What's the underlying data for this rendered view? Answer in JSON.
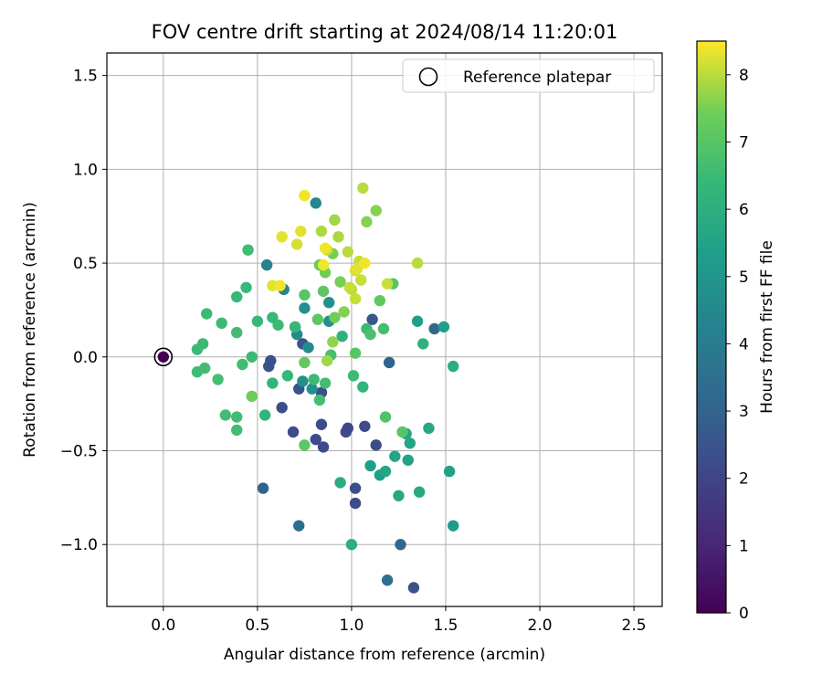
{
  "chart_data": {
    "type": "scatter",
    "title": "FOV centre drift starting at 2024/08/14 11:20:01",
    "xlabel": "Angular distance from reference (arcmin)",
    "ylabel": "Rotation from reference (arcmin)",
    "xlim": [
      -0.3,
      2.65
    ],
    "ylim": [
      -1.33,
      1.62
    ],
    "xticks": [
      0.0,
      0.5,
      1.0,
      1.5,
      2.0,
      2.5
    ],
    "xtick_labels": [
      "0.0",
      "0.5",
      "1.0",
      "1.5",
      "2.0",
      "2.5"
    ],
    "yticks": [
      -1.0,
      -0.5,
      0.0,
      0.5,
      1.0,
      1.5
    ],
    "ytick_labels": [
      "−1.0",
      "−0.5",
      "0.0",
      "0.5",
      "1.0",
      "1.5"
    ],
    "grid": true,
    "legend": {
      "position": "top-right",
      "entries": [
        "Reference platepar"
      ]
    },
    "colorbar": {
      "label": "Hours from first FF file",
      "range": [
        0,
        8.5
      ],
      "ticks": [
        0,
        1,
        2,
        3,
        4,
        5,
        6,
        7,
        8
      ],
      "tick_labels": [
        "0",
        "1",
        "2",
        "3",
        "4",
        "5",
        "6",
        "7",
        "8"
      ],
      "colormap": "viridis"
    },
    "reference_point": {
      "x": 0.0,
      "y": 0.0,
      "hours": 0
    },
    "points": [
      {
        "x": 0.53,
        "y": -0.7,
        "hours": 3.0
      },
      {
        "x": 0.72,
        "y": -0.9,
        "hours": 3.4
      },
      {
        "x": 1.19,
        "y": -1.19,
        "hours": 3.5
      },
      {
        "x": 1.26,
        "y": -1.0,
        "hours": 3.2
      },
      {
        "x": 1.33,
        "y": -1.23,
        "hours": 2.4
      },
      {
        "x": 1.02,
        "y": -0.7,
        "hours": 2.3
      },
      {
        "x": 1.02,
        "y": -0.78,
        "hours": 2.2
      },
      {
        "x": 0.69,
        "y": -0.4,
        "hours": 2.2
      },
      {
        "x": 0.81,
        "y": -0.44,
        "hours": 2.2
      },
      {
        "x": 0.85,
        "y": -0.48,
        "hours": 2.2
      },
      {
        "x": 0.84,
        "y": -0.36,
        "hours": 2.2
      },
      {
        "x": 0.97,
        "y": -0.4,
        "hours": 2.2
      },
      {
        "x": 0.98,
        "y": -0.38,
        "hours": 2.1
      },
      {
        "x": 1.07,
        "y": -0.37,
        "hours": 2.2
      },
      {
        "x": 1.13,
        "y": -0.47,
        "hours": 2.2
      },
      {
        "x": 0.63,
        "y": -0.27,
        "hours": 2.3
      },
      {
        "x": 0.56,
        "y": -0.05,
        "hours": 2.4
      },
      {
        "x": 0.57,
        "y": -0.02,
        "hours": 2.4
      },
      {
        "x": 0.72,
        "y": -0.17,
        "hours": 2.4
      },
      {
        "x": 0.74,
        "y": 0.07,
        "hours": 2.5
      },
      {
        "x": 0.84,
        "y": -0.19,
        "hours": 2.3
      },
      {
        "x": 1.11,
        "y": 0.2,
        "hours": 2.6
      },
      {
        "x": 1.2,
        "y": -0.03,
        "hours": 3.0
      },
      {
        "x": 1.44,
        "y": 0.15,
        "hours": 3.2
      },
      {
        "x": 0.55,
        "y": 0.49,
        "hours": 4.2
      },
      {
        "x": 0.81,
        "y": 0.82,
        "hours": 4.4
      },
      {
        "x": 0.64,
        "y": 0.36,
        "hours": 4.3
      },
      {
        "x": 0.7,
        "y": 0.16,
        "hours": 4.7
      },
      {
        "x": 0.71,
        "y": 0.12,
        "hours": 4.6
      },
      {
        "x": 0.77,
        "y": 0.05,
        "hours": 4.6
      },
      {
        "x": 0.75,
        "y": 0.26,
        "hours": 4.7
      },
      {
        "x": 0.88,
        "y": 0.19,
        "hours": 4.8
      },
      {
        "x": 0.88,
        "y": 0.29,
        "hours": 4.8
      },
      {
        "x": 0.74,
        "y": -0.13,
        "hours": 4.8
      },
      {
        "x": 0.79,
        "y": -0.17,
        "hours": 4.9
      },
      {
        "x": 1.49,
        "y": 0.16,
        "hours": 5.3
      },
      {
        "x": 1.35,
        "y": 0.19,
        "hours": 5.4
      },
      {
        "x": 1.54,
        "y": -0.9,
        "hours": 5.2
      },
      {
        "x": 1.52,
        "y": -0.61,
        "hours": 5.4
      },
      {
        "x": 1.1,
        "y": -0.58,
        "hours": 5.3
      },
      {
        "x": 1.15,
        "y": -0.63,
        "hours": 5.4
      },
      {
        "x": 1.18,
        "y": -0.61,
        "hours": 5.6
      },
      {
        "x": 1.23,
        "y": -0.53,
        "hours": 5.6
      },
      {
        "x": 1.29,
        "y": -0.41,
        "hours": 5.6
      },
      {
        "x": 1.3,
        "y": -0.55,
        "hours": 5.5
      },
      {
        "x": 1.31,
        "y": -0.46,
        "hours": 5.6
      },
      {
        "x": 1.41,
        "y": -0.38,
        "hours": 5.7
      },
      {
        "x": 1.25,
        "y": -0.74,
        "hours": 5.7
      },
      {
        "x": 1.36,
        "y": -0.72,
        "hours": 5.8
      },
      {
        "x": 0.94,
        "y": -0.67,
        "hours": 5.9
      },
      {
        "x": 1.0,
        "y": -1.0,
        "hours": 6.0
      },
      {
        "x": 1.54,
        "y": -0.05,
        "hours": 6.0
      },
      {
        "x": 1.38,
        "y": 0.07,
        "hours": 6.1
      },
      {
        "x": 0.95,
        "y": 0.11,
        "hours": 6.1
      },
      {
        "x": 1.06,
        "y": -0.16,
        "hours": 6.2
      },
      {
        "x": 0.39,
        "y": 0.32,
        "hours": 6.4
      },
      {
        "x": 0.44,
        "y": 0.37,
        "hours": 6.4
      },
      {
        "x": 0.45,
        "y": 0.57,
        "hours": 6.6
      },
      {
        "x": 0.5,
        "y": 0.19,
        "hours": 6.4
      },
      {
        "x": 0.58,
        "y": 0.21,
        "hours": 6.4
      },
      {
        "x": 0.61,
        "y": 0.17,
        "hours": 6.5
      },
      {
        "x": 0.58,
        "y": -0.14,
        "hours": 6.3
      },
      {
        "x": 0.66,
        "y": -0.1,
        "hours": 6.4
      },
      {
        "x": 0.7,
        "y": 0.16,
        "hours": 6.4
      },
      {
        "x": 0.54,
        "y": -0.31,
        "hours": 6.3
      },
      {
        "x": 0.42,
        "y": -0.04,
        "hours": 6.6
      },
      {
        "x": 0.47,
        "y": 0.0,
        "hours": 6.5
      },
      {
        "x": 0.39,
        "y": 0.13,
        "hours": 6.6
      },
      {
        "x": 0.23,
        "y": 0.23,
        "hours": 6.5
      },
      {
        "x": 0.31,
        "y": 0.18,
        "hours": 6.5
      },
      {
        "x": 0.18,
        "y": 0.04,
        "hours": 6.5
      },
      {
        "x": 0.21,
        "y": 0.07,
        "hours": 6.5
      },
      {
        "x": 0.18,
        "y": -0.08,
        "hours": 6.6
      },
      {
        "x": 0.22,
        "y": -0.06,
        "hours": 6.6
      },
      {
        "x": 0.29,
        "y": -0.12,
        "hours": 6.7
      },
      {
        "x": 0.33,
        "y": -0.31,
        "hours": 6.6
      },
      {
        "x": 0.39,
        "y": -0.32,
        "hours": 6.6
      },
      {
        "x": 0.39,
        "y": -0.39,
        "hours": 6.6
      },
      {
        "x": 0.8,
        "y": -0.12,
        "hours": 6.5
      },
      {
        "x": 0.83,
        "y": -0.23,
        "hours": 6.7
      },
      {
        "x": 0.86,
        "y": -0.14,
        "hours": 6.6
      },
      {
        "x": 0.89,
        "y": 0.01,
        "hours": 6.7
      },
      {
        "x": 1.01,
        "y": -0.1,
        "hours": 6.5
      },
      {
        "x": 1.08,
        "y": 0.15,
        "hours": 6.5
      },
      {
        "x": 1.17,
        "y": 0.15,
        "hours": 6.7
      },
      {
        "x": 1.1,
        "y": 0.12,
        "hours": 6.8
      },
      {
        "x": 1.18,
        "y": -0.32,
        "hours": 6.9
      },
      {
        "x": 1.22,
        "y": 0.39,
        "hours": 7.0
      },
      {
        "x": 1.02,
        "y": 0.02,
        "hours": 7.0
      },
      {
        "x": 1.27,
        "y": -0.4,
        "hours": 7.0
      },
      {
        "x": 0.75,
        "y": 0.33,
        "hours": 7.0
      },
      {
        "x": 0.82,
        "y": 0.2,
        "hours": 7.1
      },
      {
        "x": 0.85,
        "y": 0.35,
        "hours": 7.1
      },
      {
        "x": 0.87,
        "y": -0.02,
        "hours": 7.8
      },
      {
        "x": 0.75,
        "y": -0.47,
        "hours": 7.1
      },
      {
        "x": 0.75,
        "y": -0.03,
        "hours": 7.2
      },
      {
        "x": 0.47,
        "y": -0.21,
        "hours": 7.4
      },
      {
        "x": 0.83,
        "y": 0.49,
        "hours": 7.2
      },
      {
        "x": 0.86,
        "y": 0.45,
        "hours": 7.4
      },
      {
        "x": 0.9,
        "y": 0.55,
        "hours": 7.5
      },
      {
        "x": 0.94,
        "y": 0.4,
        "hours": 7.5
      },
      {
        "x": 0.91,
        "y": 0.21,
        "hours": 7.4
      },
      {
        "x": 0.96,
        "y": 0.24,
        "hours": 7.6
      },
      {
        "x": 0.9,
        "y": 0.08,
        "hours": 7.7
      },
      {
        "x": 1.15,
        "y": 0.3,
        "hours": 7.2
      },
      {
        "x": 1.08,
        "y": 0.72,
        "hours": 7.6
      },
      {
        "x": 1.13,
        "y": 0.78,
        "hours": 7.6
      },
      {
        "x": 1.06,
        "y": 0.9,
        "hours": 8.0
      },
      {
        "x": 1.35,
        "y": 0.5,
        "hours": 8.0
      },
      {
        "x": 0.91,
        "y": 0.73,
        "hours": 7.8
      },
      {
        "x": 0.84,
        "y": 0.67,
        "hours": 7.9
      },
      {
        "x": 0.93,
        "y": 0.64,
        "hours": 7.9
      },
      {
        "x": 0.98,
        "y": 0.56,
        "hours": 8.0
      },
      {
        "x": 0.87,
        "y": 0.57,
        "hours": 8.1
      },
      {
        "x": 1.0,
        "y": 0.36,
        "hours": 8.0
      },
      {
        "x": 0.99,
        "y": 0.37,
        "hours": 8.1
      },
      {
        "x": 1.02,
        "y": 0.31,
        "hours": 8.1
      },
      {
        "x": 1.04,
        "y": 0.51,
        "hours": 8.1
      },
      {
        "x": 1.05,
        "y": 0.41,
        "hours": 8.1
      },
      {
        "x": 1.02,
        "y": 0.46,
        "hours": 8.2
      },
      {
        "x": 1.03,
        "y": 0.47,
        "hours": 8.3
      },
      {
        "x": 0.71,
        "y": 0.6,
        "hours": 8.2
      },
      {
        "x": 0.73,
        "y": 0.67,
        "hours": 8.3
      },
      {
        "x": 0.63,
        "y": 0.64,
        "hours": 8.3
      },
      {
        "x": 0.58,
        "y": 0.38,
        "hours": 8.3
      },
      {
        "x": 0.62,
        "y": 0.38,
        "hours": 8.4
      },
      {
        "x": 0.75,
        "y": 0.86,
        "hours": 8.4
      },
      {
        "x": 0.85,
        "y": 0.49,
        "hours": 8.4
      },
      {
        "x": 1.07,
        "y": 0.5,
        "hours": 8.4
      },
      {
        "x": 1.19,
        "y": 0.39,
        "hours": 8.1
      },
      {
        "x": 0.86,
        "y": 0.58,
        "hours": 8.4
      }
    ]
  }
}
